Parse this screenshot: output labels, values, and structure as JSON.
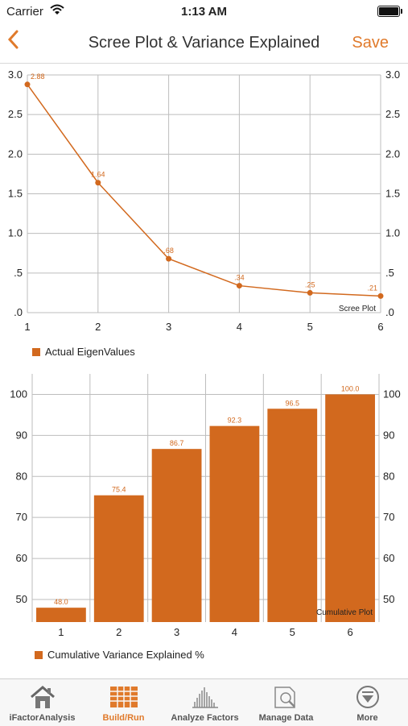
{
  "status_bar": {
    "carrier": "Carrier",
    "time": "1:13 AM"
  },
  "nav": {
    "back_icon": "chevron-left-icon",
    "title": "Scree Plot & Variance Explained",
    "save_label": "Save"
  },
  "colors": {
    "accent": "#e07a2b",
    "series": "#d2691e"
  },
  "chart_data": [
    {
      "type": "line",
      "x": [
        1,
        2,
        3,
        4,
        5,
        6
      ],
      "values": [
        2.88,
        1.64,
        0.68,
        0.34,
        0.25,
        0.21
      ],
      "data_labels": [
        "2.88",
        "1.64",
        ".68",
        ".34",
        ".25",
        ".21"
      ],
      "y_ticks": [
        0,
        0.5,
        1.0,
        1.5,
        2.0,
        2.5,
        3.0
      ],
      "y_tick_labels": [
        ".0",
        ".5",
        "1.0",
        "1.5",
        "2.0",
        "2.5",
        "3.0"
      ],
      "x_tick_labels": [
        "1",
        "2",
        "3",
        "4",
        "5",
        "6"
      ],
      "ylim": [
        0,
        3.0
      ],
      "annotation": "Scree Plot",
      "legend": "Actual EigenValues",
      "legend_position": "bottom-left",
      "grid": true
    },
    {
      "type": "bar",
      "categories": [
        "1",
        "2",
        "3",
        "4",
        "5",
        "6"
      ],
      "values": [
        48.0,
        75.4,
        86.7,
        92.3,
        96.5,
        100.0
      ],
      "data_labels": [
        "48.0",
        "75.4",
        "86.7",
        "92.3",
        "96.5",
        "100.0"
      ],
      "y_ticks": [
        50,
        60,
        70,
        80,
        90,
        100
      ],
      "y_tick_labels": [
        "50",
        "60",
        "70",
        "80",
        "90",
        "100"
      ],
      "ylim": [
        44.5,
        105
      ],
      "annotation": "Cumulative Plot",
      "legend": "Cumulative Variance Explained %",
      "legend_position": "bottom-left",
      "grid": true
    }
  ],
  "tabs": [
    {
      "label": "iFactorAnalysis",
      "icon": "house-icon",
      "active": false
    },
    {
      "label": "Build/Run",
      "icon": "grid-table-icon",
      "active": true
    },
    {
      "label": "Analyze Factors",
      "icon": "bar-chart-icon",
      "active": false
    },
    {
      "label": "Manage Data",
      "icon": "magnifier-document-icon",
      "active": false
    },
    {
      "label": "More",
      "icon": "more-circle-icon",
      "active": false
    }
  ]
}
